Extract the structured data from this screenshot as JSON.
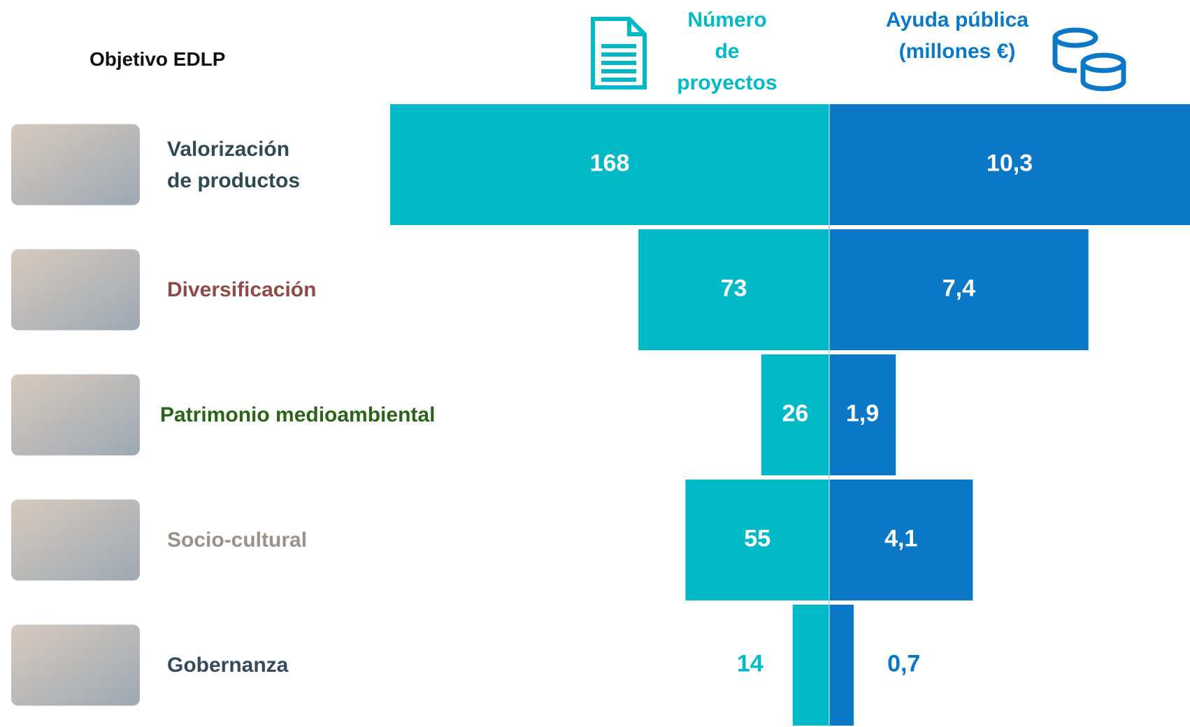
{
  "chart_data": {
    "type": "butterfly",
    "title": "Objetivo EDLP",
    "categories": [
      "Valorización\nde productos",
      "Diversificación",
      "Patrimonio medioambiental",
      "Socio-cultural",
      "Gobernanza"
    ],
    "category_colors": [
      "#2f4a52",
      "#8e4b47",
      "#2b6418",
      "#9b918c",
      "#354a5c"
    ],
    "series": [
      {
        "name": "Número\nde\nproyectos",
        "color": "#00b9c6",
        "values": [
          168,
          73,
          26,
          55,
          14
        ]
      },
      {
        "name": "Ayuda pública\n(millones €)",
        "color": "#0a78c6",
        "values": [
          10.3,
          7.4,
          1.9,
          4.1,
          0.7
        ],
        "value_labels": [
          "10,3",
          "7,4",
          "1,9",
          "4,1",
          "0,7"
        ]
      }
    ]
  }
}
